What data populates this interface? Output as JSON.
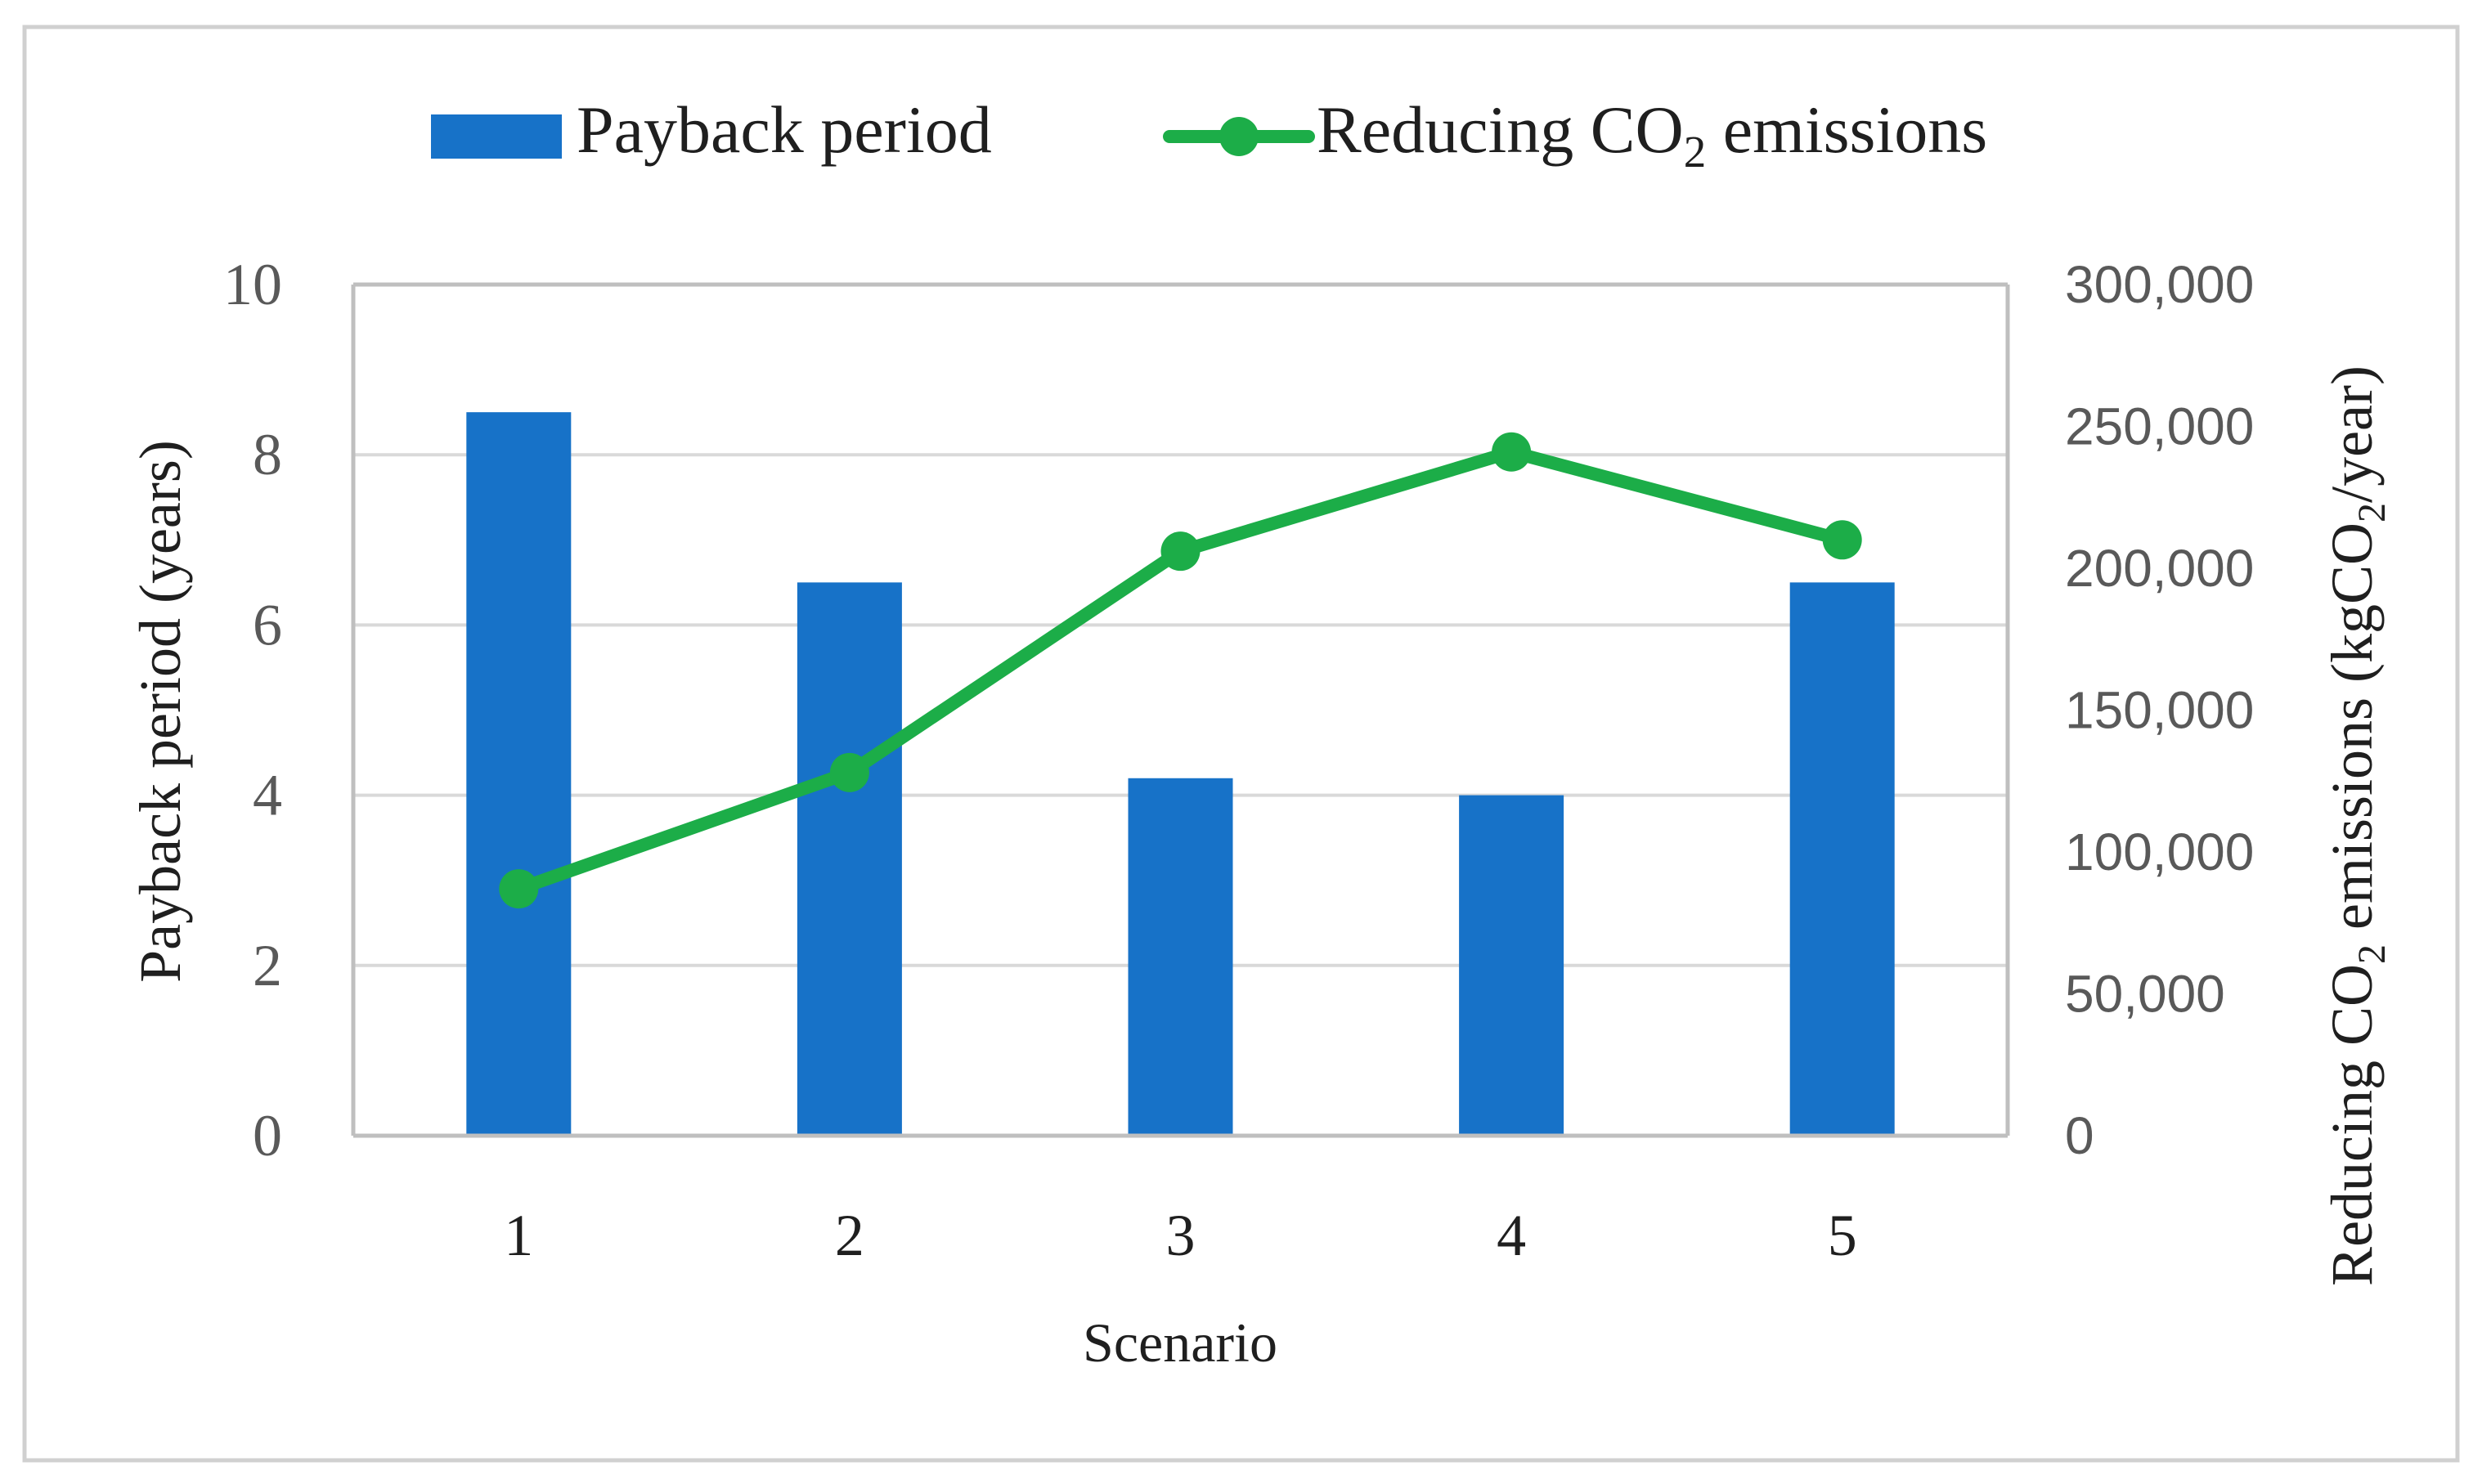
{
  "colors": {
    "bar": "#1772C8",
    "line": "#1CAD48",
    "grid": "#D9D9D9",
    "axis": "#BFBFBF",
    "frame": "#D0D0D0",
    "text": "#1F1F1F",
    "tick_text": "#595959"
  },
  "chart_data": {
    "type": "bar",
    "title": "",
    "xlabel": "Scenario",
    "categories": [
      "1",
      "2",
      "3",
      "4",
      "5"
    ],
    "ylabel": {
      "main": "Payback period (years)"
    },
    "y2label": {
      "prefix": "Reducing CO",
      "sub": "2",
      "middle": " emissions (kgCO",
      "sub2": "2",
      "suffix": "/year)"
    },
    "ylim": [
      0,
      10
    ],
    "y2lim": [
      0,
      300000
    ],
    "yticks": [
      "0",
      "2",
      "4",
      "6",
      "8",
      "10"
    ],
    "y2ticks": [
      "0",
      "50,000",
      "100,000",
      "150,000",
      "200,000",
      "250,000",
      "300,000"
    ],
    "legend_position": "top",
    "grid": true,
    "series": [
      {
        "name": "Payback period",
        "type": "bar",
        "axis": "left",
        "values": [
          8.5,
          6.5,
          4.2,
          4.0,
          6.5
        ]
      },
      {
        "name": "Reducing CO2 emissions",
        "type": "line",
        "axis": "right",
        "values": [
          87000,
          128000,
          206000,
          241000,
          210000
        ]
      }
    ],
    "legend": [
      {
        "label": "Payback period",
        "marker": "bar"
      },
      {
        "label_prefix": "Reducing CO",
        "label_sub": "2",
        "label_suffix": " emissions",
        "marker": "line"
      }
    ]
  }
}
